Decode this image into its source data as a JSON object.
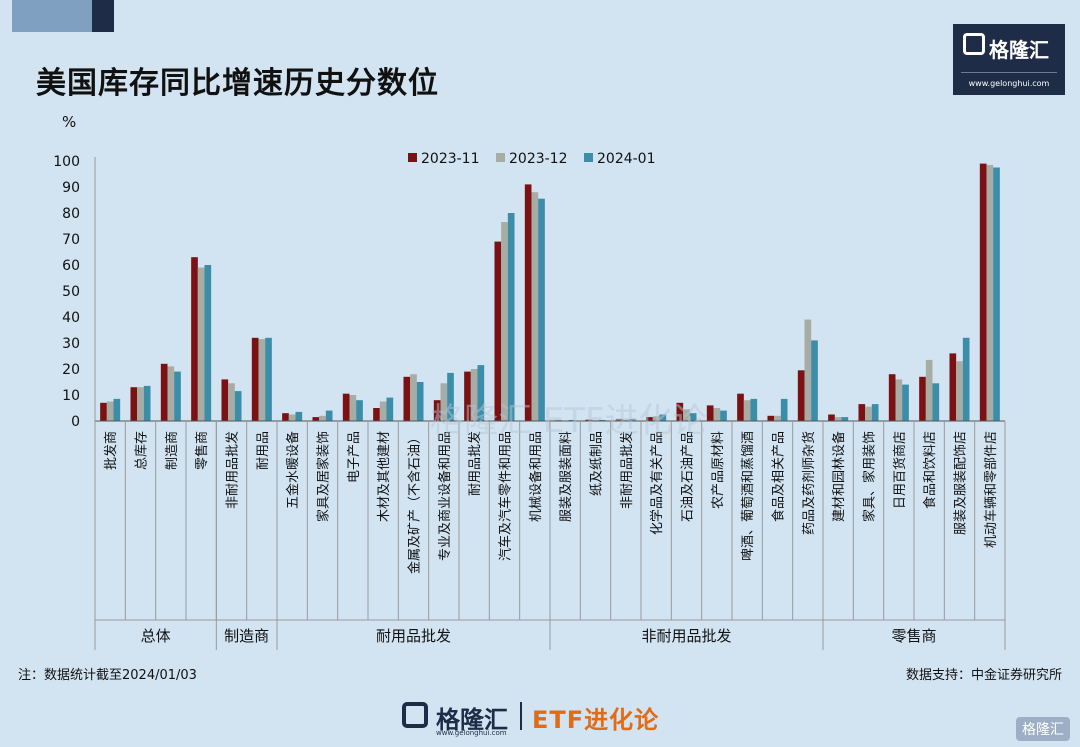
{
  "title": "美国库存同比增速历史分数位",
  "logo": {
    "name": "格隆汇",
    "url": "www.gelonghui.com"
  },
  "note": "注：数据统计截至2024/01/03",
  "source": "数据支持：中金证券研究所",
  "footer": {
    "name": "格隆汇",
    "url": "www.gelonghui.com",
    "tagline": "ETF进化论"
  },
  "watermark": "格隆汇",
  "colors": {
    "s2023_11": "#7b1113",
    "s2023_12": "#a7aca5",
    "s2024_01": "#3b8da8"
  },
  "chart_data": {
    "type": "bar",
    "ylabel": "%",
    "ylim": [
      0,
      100
    ],
    "yticks": [
      0,
      10,
      20,
      30,
      40,
      50,
      60,
      70,
      80,
      90,
      100
    ],
    "legend_position": "top",
    "categories": [
      "批发商",
      "总库存",
      "制造商",
      "零售商",
      "非耐用品批发",
      "耐用品",
      "五金水暖设备",
      "家具及居家装饰",
      "电子产品",
      "木材及其他建材",
      "金属及矿产（不含石油）",
      "专业及商业设备和用品",
      "耐用品批发",
      "汽车及汽车零件和用品",
      "机械设备和用品",
      "服装及服装面料",
      "纸及纸制品",
      "非耐用品批发",
      "化学品及有关产品",
      "石油及石油产品",
      "农产品原材料",
      "啤酒、葡萄酒和蒸馏酒",
      "食品及相关产品",
      "药品及药剂师杂货",
      "建材和园林设备",
      "家具、家用装饰",
      "日用百货商店",
      "食品和饮料店",
      "服装及服装配饰店",
      "机动车辆和零部件店"
    ],
    "series": [
      {
        "name": "2023-11",
        "values": [
          7,
          13,
          22,
          63,
          16,
          32,
          3,
          1.5,
          10.5,
          5,
          17,
          8,
          19,
          69,
          91,
          0.3,
          0.5,
          0.7,
          1.5,
          7,
          6,
          10.5,
          2,
          19.5,
          2.5,
          6.5,
          18,
          17,
          26,
          99
        ]
      },
      {
        "name": "2023-12",
        "values": [
          7.5,
          13,
          21,
          59,
          14.5,
          31.5,
          2.5,
          2,
          10,
          7.5,
          18,
          14.5,
          20,
          76.5,
          88,
          0.2,
          0.3,
          0.5,
          1.8,
          4.5,
          5,
          8,
          2,
          39,
          1.5,
          5.5,
          16,
          23.5,
          23,
          98.5
        ]
      },
      {
        "name": "2024-01",
        "values": [
          8.5,
          13.5,
          19,
          60,
          11.5,
          32,
          3.5,
          4,
          8,
          9,
          15,
          18.5,
          21.5,
          80,
          85.5,
          0.4,
          0.4,
          0.8,
          2.5,
          3,
          4,
          8.5,
          8.5,
          31,
          1.5,
          6.5,
          14,
          14.5,
          32,
          97.5
        ]
      }
    ],
    "groups": [
      {
        "label": "总体",
        "span": [
          0,
          3
        ]
      },
      {
        "label": "制造商",
        "span": [
          4,
          5
        ]
      },
      {
        "label": "耐用品批发",
        "span": [
          6,
          14
        ]
      },
      {
        "label": "非耐用品批发",
        "span": [
          15,
          23
        ]
      },
      {
        "label": "零售商",
        "span": [
          24,
          29
        ]
      }
    ]
  }
}
